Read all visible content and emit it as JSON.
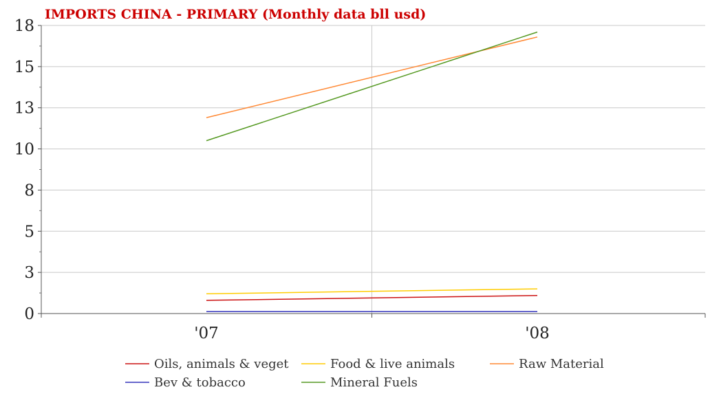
{
  "chart_data": {
    "type": "line",
    "title": "IMPORTS CHINA - PRIMARY (Monthly data bll usd)",
    "title_color": "#cc0000",
    "categories": [
      "'07",
      "'08"
    ],
    "y_ticks": [
      "0",
      "3",
      "5",
      "8",
      "10",
      "13",
      "15",
      "18"
    ],
    "y_tick_values": [
      0,
      2.5,
      5,
      7.5,
      10,
      12.5,
      15,
      17.5
    ],
    "ylim": [
      0,
      17.5
    ],
    "grid": true,
    "legend_position": "bottom",
    "series": [
      {
        "name": "Oils, animals & veget",
        "color": "#cc1111",
        "values": [
          0.8,
          1.1
        ]
      },
      {
        "name": "Food & live animals",
        "color": "#ffcc00",
        "values": [
          1.2,
          1.5
        ]
      },
      {
        "name": "Raw Material",
        "color": "#ff8833",
        "values": [
          11.9,
          16.8
        ]
      },
      {
        "name": "Bev & tobacco",
        "color": "#3333bb",
        "values": [
          0.12,
          0.12
        ]
      },
      {
        "name": "Mineral Fuels",
        "color": "#559922",
        "values": [
          10.5,
          17.1
        ]
      }
    ]
  }
}
